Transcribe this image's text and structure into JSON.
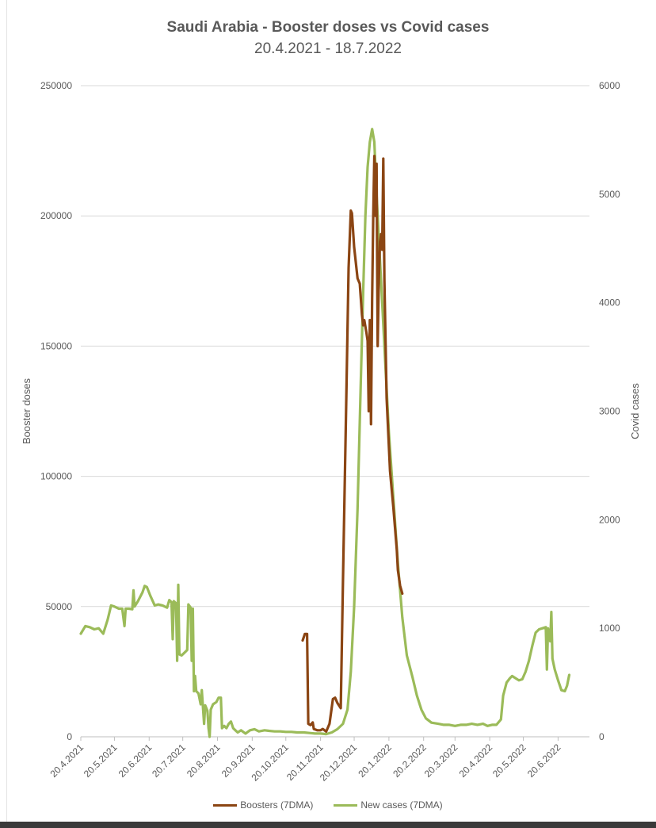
{
  "chart_data": {
    "type": "line",
    "title": "Saudi Arabia - Booster doses vs Covid cases",
    "subtitle": "20.4.2021 - 18.7.2022",
    "ylabel": "Booster doses",
    "y2label": "Covid cases",
    "ylim": [
      0,
      250000
    ],
    "y2lim": [
      0,
      6000
    ],
    "yticks": [
      "0",
      "50000",
      "100000",
      "150000",
      "200000",
      "250000"
    ],
    "y2ticks": [
      "0",
      "1000",
      "2000",
      "3000",
      "4000",
      "5000",
      "6000"
    ],
    "x_range": [
      "2021-04-20",
      "2022-07-18"
    ],
    "xticks": [
      "20.4.2021",
      "20.5.2021",
      "20.6.2021",
      "20.7.2021",
      "20.8.2021",
      "20.9.2021",
      "20.10.2021",
      "20.11.2021",
      "20.12.2021",
      "20.1.2022",
      "20.2.2022",
      "20.3.2022",
      "20.4.2022",
      "20.5.2022",
      "20.6.2022"
    ],
    "xtick_dates": [
      "2021-04-20",
      "2021-05-20",
      "2021-06-20",
      "2021-07-20",
      "2021-08-20",
      "2021-09-20",
      "2021-10-20",
      "2021-11-20",
      "2021-12-20",
      "2022-01-20",
      "2022-02-20",
      "2022-03-20",
      "2022-04-20",
      "2022-05-20",
      "2022-06-20"
    ],
    "grid": true,
    "legend_position": "bottom",
    "series": [
      {
        "name": "Boosters (7DMA)",
        "axis": "left",
        "color": "#8B4513",
        "points": [
          [
            "2021-11-04",
            37000
          ],
          [
            "2021-11-06",
            39500
          ],
          [
            "2021-11-08",
            39500
          ],
          [
            "2021-11-09",
            5000
          ],
          [
            "2021-11-11",
            4500
          ],
          [
            "2021-11-13",
            5500
          ],
          [
            "2021-11-14",
            3000
          ],
          [
            "2021-11-17",
            2500
          ],
          [
            "2021-11-20",
            2500
          ],
          [
            "2021-11-22",
            3000
          ],
          [
            "2021-11-25",
            2000
          ],
          [
            "2021-11-28",
            5000
          ],
          [
            "2021-12-01",
            14500
          ],
          [
            "2021-12-03",
            15000
          ],
          [
            "2021-12-05",
            13000
          ],
          [
            "2021-12-08",
            11000
          ],
          [
            "2021-12-10",
            60000
          ],
          [
            "2021-12-13",
            130000
          ],
          [
            "2021-12-15",
            180000
          ],
          [
            "2021-12-17",
            202000
          ],
          [
            "2021-12-18",
            201000
          ],
          [
            "2021-12-20",
            188000
          ],
          [
            "2021-12-23",
            176000
          ],
          [
            "2021-12-25",
            174000
          ],
          [
            "2021-12-27",
            162000
          ],
          [
            "2021-12-28",
            158000
          ],
          [
            "2021-12-29",
            160000
          ],
          [
            "2021-12-31",
            155000
          ],
          [
            "2022-01-01",
            152000
          ],
          [
            "2022-01-02",
            125000
          ],
          [
            "2022-01-03",
            160000
          ],
          [
            "2022-01-04",
            120000
          ],
          [
            "2022-01-05",
            168000
          ],
          [
            "2022-01-06",
            200000
          ],
          [
            "2022-01-07",
            223000
          ],
          [
            "2022-01-08",
            200000
          ],
          [
            "2022-01-09",
            220000
          ],
          [
            "2022-01-10",
            150000
          ],
          [
            "2022-01-11",
            175000
          ],
          [
            "2022-01-12",
            190000
          ],
          [
            "2022-01-13",
            193000
          ],
          [
            "2022-01-14",
            187000
          ],
          [
            "2022-01-15",
            222000
          ],
          [
            "2022-01-16",
            175000
          ],
          [
            "2022-01-18",
            130000
          ],
          [
            "2022-01-21",
            102000
          ],
          [
            "2022-01-24",
            88000
          ],
          [
            "2022-01-27",
            72000
          ],
          [
            "2022-01-28",
            64000
          ],
          [
            "2022-01-30",
            58000
          ],
          [
            "2022-02-01",
            55000
          ]
        ]
      },
      {
        "name": "New cases (7DMA)",
        "axis": "right",
        "color": "#9BBB59",
        "points": [
          [
            "2021-04-20",
            950
          ],
          [
            "2021-04-24",
            1020
          ],
          [
            "2021-04-28",
            1010
          ],
          [
            "2021-05-02",
            990
          ],
          [
            "2021-05-06",
            1000
          ],
          [
            "2021-05-10",
            950
          ],
          [
            "2021-05-14",
            1080
          ],
          [
            "2021-05-17",
            1210
          ],
          [
            "2021-05-20",
            1200
          ],
          [
            "2021-05-24",
            1180
          ],
          [
            "2021-05-27",
            1180
          ],
          [
            "2021-05-29",
            1020
          ],
          [
            "2021-05-30",
            1180
          ],
          [
            "2021-06-02",
            1180
          ],
          [
            "2021-06-05",
            1175
          ],
          [
            "2021-06-06",
            1350
          ],
          [
            "2021-06-07",
            1200
          ],
          [
            "2021-06-10",
            1250
          ],
          [
            "2021-06-14",
            1330
          ],
          [
            "2021-06-16",
            1390
          ],
          [
            "2021-06-18",
            1380
          ],
          [
            "2021-06-21",
            1300
          ],
          [
            "2021-06-25",
            1210
          ],
          [
            "2021-06-28",
            1220
          ],
          [
            "2021-07-02",
            1210
          ],
          [
            "2021-07-06",
            1190
          ],
          [
            "2021-07-08",
            1260
          ],
          [
            "2021-07-10",
            1240
          ],
          [
            "2021-07-11",
            900
          ],
          [
            "2021-07-12",
            1250
          ],
          [
            "2021-07-14",
            1230
          ],
          [
            "2021-07-15",
            700
          ],
          [
            "2021-07-16",
            1400
          ],
          [
            "2021-07-17",
            760
          ],
          [
            "2021-07-19",
            750
          ],
          [
            "2021-07-22",
            780
          ],
          [
            "2021-07-24",
            800
          ],
          [
            "2021-07-25",
            1220
          ],
          [
            "2021-07-27",
            1190
          ],
          [
            "2021-07-28",
            700
          ],
          [
            "2021-07-29",
            1180
          ],
          [
            "2021-07-30",
            420
          ],
          [
            "2021-07-31",
            560
          ],
          [
            "2021-08-01",
            420
          ],
          [
            "2021-08-03",
            400
          ],
          [
            "2021-08-05",
            300
          ],
          [
            "2021-08-06",
            430
          ],
          [
            "2021-08-08",
            120
          ],
          [
            "2021-08-09",
            290
          ],
          [
            "2021-08-11",
            240
          ],
          [
            "2021-08-12",
            80
          ],
          [
            "2021-08-13",
            0
          ],
          [
            "2021-08-14",
            250
          ],
          [
            "2021-08-16",
            300
          ],
          [
            "2021-08-19",
            320
          ],
          [
            "2021-08-21",
            360
          ],
          [
            "2021-08-23",
            360
          ],
          [
            "2021-08-24",
            80
          ],
          [
            "2021-08-26",
            100
          ],
          [
            "2021-08-28",
            80
          ],
          [
            "2021-08-30",
            120
          ],
          [
            "2021-09-01",
            140
          ],
          [
            "2021-09-03",
            80
          ],
          [
            "2021-09-05",
            60
          ],
          [
            "2021-09-07",
            40
          ],
          [
            "2021-09-10",
            60
          ],
          [
            "2021-09-14",
            30
          ],
          [
            "2021-09-18",
            60
          ],
          [
            "2021-09-22",
            70
          ],
          [
            "2021-09-26",
            50
          ],
          [
            "2021-10-01",
            60
          ],
          [
            "2021-10-05",
            55
          ],
          [
            "2021-10-10",
            50
          ],
          [
            "2021-10-15",
            50
          ],
          [
            "2021-10-20",
            45
          ],
          [
            "2021-10-25",
            45
          ],
          [
            "2021-10-30",
            40
          ],
          [
            "2021-11-05",
            40
          ],
          [
            "2021-11-10",
            35
          ],
          [
            "2021-11-15",
            30
          ],
          [
            "2021-11-20",
            30
          ],
          [
            "2021-11-25",
            25
          ],
          [
            "2021-11-30",
            40
          ],
          [
            "2021-12-05",
            70
          ],
          [
            "2021-12-10",
            120
          ],
          [
            "2021-12-14",
            250
          ],
          [
            "2021-12-17",
            600
          ],
          [
            "2021-12-20",
            1200
          ],
          [
            "2021-12-23",
            2100
          ],
          [
            "2021-12-26",
            3300
          ],
          [
            "2021-12-28",
            4100
          ],
          [
            "2021-12-30",
            4800
          ],
          [
            "2022-01-01",
            5250
          ],
          [
            "2022-01-03",
            5480
          ],
          [
            "2022-01-05",
            5600
          ],
          [
            "2022-01-07",
            5480
          ],
          [
            "2022-01-09",
            5000
          ],
          [
            "2022-01-11",
            4600
          ],
          [
            "2022-01-14",
            4000
          ],
          [
            "2022-01-17",
            3400
          ],
          [
            "2022-01-20",
            2800
          ],
          [
            "2022-01-24",
            2200
          ],
          [
            "2022-01-28",
            1600
          ],
          [
            "2022-02-01",
            1100
          ],
          [
            "2022-02-05",
            750
          ],
          [
            "2022-02-10",
            550
          ],
          [
            "2022-02-14",
            380
          ],
          [
            "2022-02-18",
            250
          ],
          [
            "2022-02-22",
            170
          ],
          [
            "2022-02-27",
            130
          ],
          [
            "2022-03-05",
            120
          ],
          [
            "2022-03-10",
            110
          ],
          [
            "2022-03-15",
            110
          ],
          [
            "2022-03-20",
            100
          ],
          [
            "2022-03-25",
            110
          ],
          [
            "2022-03-30",
            110
          ],
          [
            "2022-04-04",
            120
          ],
          [
            "2022-04-09",
            110
          ],
          [
            "2022-04-14",
            120
          ],
          [
            "2022-04-18",
            100
          ],
          [
            "2022-04-22",
            110
          ],
          [
            "2022-04-26",
            110
          ],
          [
            "2022-04-30",
            160
          ],
          [
            "2022-05-02",
            380
          ],
          [
            "2022-05-05",
            500
          ],
          [
            "2022-05-08",
            540
          ],
          [
            "2022-05-10",
            560
          ],
          [
            "2022-05-13",
            540
          ],
          [
            "2022-05-16",
            520
          ],
          [
            "2022-05-19",
            530
          ],
          [
            "2022-05-22",
            600
          ],
          [
            "2022-05-25",
            700
          ],
          [
            "2022-05-28",
            840
          ],
          [
            "2022-05-31",
            960
          ],
          [
            "2022-06-03",
            990
          ],
          [
            "2022-06-06",
            1000
          ],
          [
            "2022-06-09",
            1010
          ],
          [
            "2022-06-10",
            620
          ],
          [
            "2022-06-11",
            1000
          ],
          [
            "2022-06-13",
            880
          ],
          [
            "2022-06-14",
            1150
          ],
          [
            "2022-06-15",
            720
          ],
          [
            "2022-06-17",
            620
          ],
          [
            "2022-06-20",
            520
          ],
          [
            "2022-06-23",
            430
          ],
          [
            "2022-06-26",
            420
          ],
          [
            "2022-06-28",
            470
          ],
          [
            "2022-06-30",
            570
          ]
        ]
      }
    ]
  }
}
